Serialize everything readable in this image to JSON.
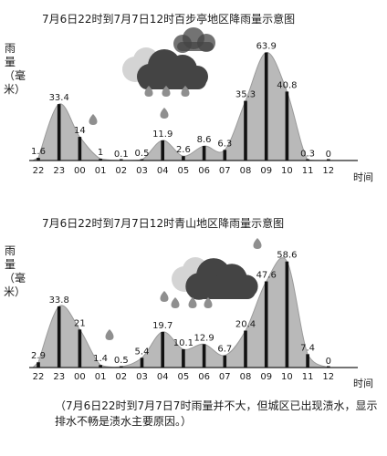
{
  "chart_data": [
    {
      "type": "area",
      "title": "7月6日22时到7月7日12时百步亭地区降雨量示意图",
      "ylabel": "雨量（毫米）",
      "xlabel": "时间",
      "categories": [
        "22",
        "23",
        "00",
        "01",
        "02",
        "03",
        "04",
        "05",
        "06",
        "07",
        "08",
        "09",
        "10",
        "11",
        "12"
      ],
      "values": [
        1.6,
        33.4,
        14,
        1,
        0.1,
        0.5,
        11.9,
        2.6,
        8.6,
        6.3,
        35.3,
        63.9,
        40.8,
        0.3,
        0
      ],
      "value_labels": [
        "1.6",
        "33.4",
        "14",
        "1",
        "0.1",
        "0.5",
        "11.9",
        "2.6",
        "8.6",
        "6.3",
        "35.3",
        "63.9",
        "40.8",
        "0.3",
        "0"
      ],
      "ylim": [
        0,
        68
      ],
      "grid": false
    },
    {
      "type": "area",
      "title": "7月6日22时到7月7日12时青山地区降雨量示意图",
      "ylabel": "雨量（毫米）",
      "xlabel": "时间",
      "categories": [
        "22",
        "23",
        "00",
        "01",
        "02",
        "03",
        "04",
        "05",
        "06",
        "07",
        "08",
        "09",
        "10",
        "11",
        "12"
      ],
      "values": [
        2.9,
        33.8,
        21,
        1.4,
        0.5,
        5.4,
        19.7,
        10.1,
        12.9,
        6.7,
        20.4,
        47.6,
        58.6,
        7.4,
        0
      ],
      "value_labels": [
        "2.9",
        "33.8",
        "21",
        "1.4",
        "0.5",
        "5.4",
        "19.7",
        "10.1",
        "12.9",
        "6.7",
        "20.4",
        "47.6",
        "58.6",
        "7.4",
        "0"
      ],
      "ylim": [
        0,
        64
      ],
      "grid": false
    }
  ],
  "caption": "（7月6日22时到7月7日7时雨量并不大，但城区已出现渍水，显示排水不畅是渍水主要原因。）",
  "colors": {
    "area_fill": "#b9b9b9",
    "area_stroke": "#9a9a9a",
    "bar": "#111111",
    "cloud_dark": "#444444",
    "cloud_light": "#d4d4d4",
    "drop": "#8f8f8f"
  }
}
